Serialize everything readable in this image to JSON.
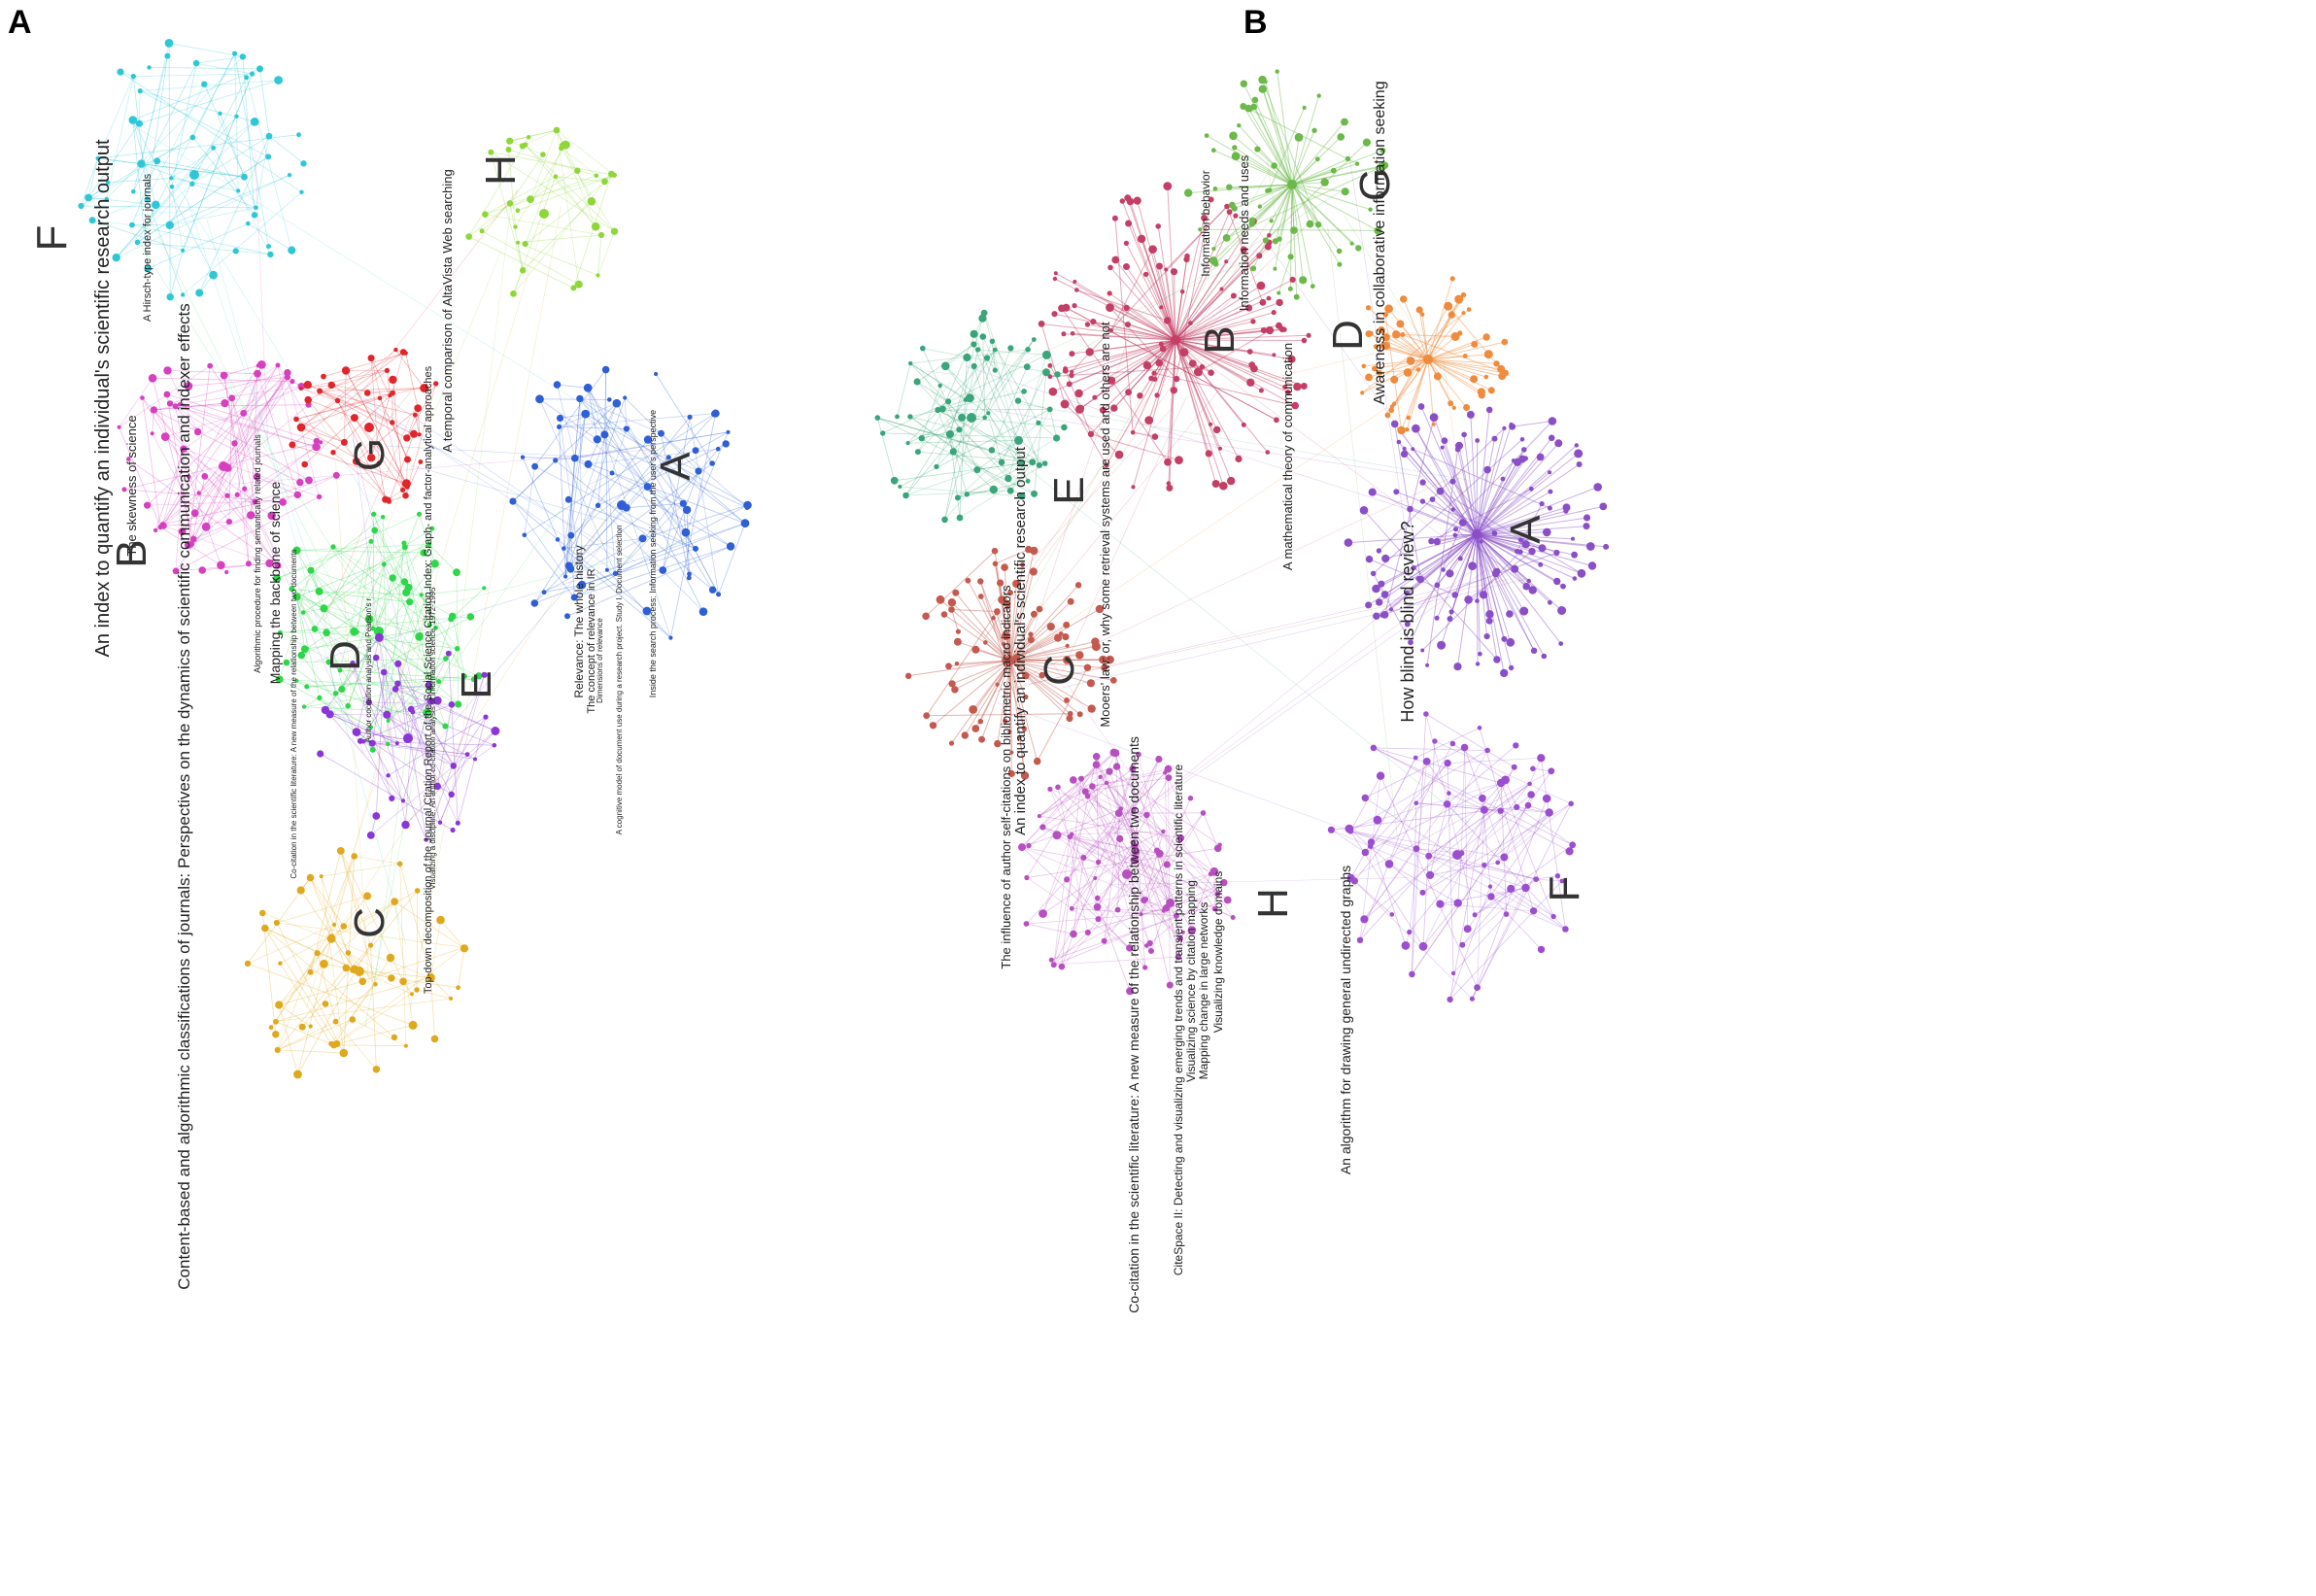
{
  "panels": [
    {
      "id": "A",
      "letter": "A",
      "clusters": [
        {
          "label": "A",
          "color": "#2f5fd6"
        },
        {
          "label": "B",
          "color": "#d63fc0"
        },
        {
          "label": "C",
          "color": "#e0a81c"
        },
        {
          "label": "D",
          "color": "#2fd64a"
        },
        {
          "label": "E",
          "color": "#8a35d6"
        },
        {
          "label": "F",
          "color": "#2fc7d6"
        },
        {
          "label": "G",
          "color": "#e0262b"
        },
        {
          "label": "H",
          "color": "#8fd63a"
        }
      ],
      "titles": [
        "An index to quantify an individual's scientific research output",
        "A temporal comparison of AltaVista Web searching",
        "Content-based and algorithmic classifications of journals: Perspectives on the dynamics of scientific communication and indexer effects",
        "A Hirsch-type index for journals",
        "The skewness of science",
        "Mapping the backbone of science",
        "Algorithmic procedure for finding semantically related journals",
        "Top-down decomposition of the Journal Citation Report of the Social Science Citation Index: Graph- and factor-analytical approaches",
        "Inside the search process: Information seeking from the user's perspective",
        "Relevance: The whole history",
        "The concept of relevance in IR",
        "Dimensions of relevance",
        "Co-citation in the scientific literature: A new measure of the relationship between two documents",
        "Author cocitation analysis and Pearson's r",
        "Visualizing a discipline: An author co-citation analysis of information science, 1972-1995",
        "A cognitive model of document use during a research project. Study I. Document selection"
      ]
    },
    {
      "id": "B",
      "letter": "B",
      "clusters": [
        {
          "label": "A",
          "color": "#8a4fc7"
        },
        {
          "label": "B",
          "color": "#c43f66"
        },
        {
          "label": "C",
          "color": "#c45a4f"
        },
        {
          "label": "D",
          "color": "#f08a3c"
        },
        {
          "label": "E",
          "color": "#3aa57a"
        },
        {
          "label": "F",
          "color": "#9b4fd0"
        },
        {
          "label": "G",
          "color": "#6cb84a"
        },
        {
          "label": "H",
          "color": "#b84fc0"
        }
      ],
      "titles": [
        "Awareness in collaborative information seeking",
        "Information needs and uses",
        "Information behavior",
        "Mooers' law: or, why some retrieval systems are used and others are not",
        "A mathematical theory of communication",
        "How blind is blind review?",
        "An index to quantify an individual's scientific research output",
        "The influence of author self-citations on bibliometric macro indicators",
        "Co-citation in the scientific literature: A new measure of the relationship between two documents",
        "CiteSpace II: Detecting and visualizing emerging trends and transient patterns in scientific literature",
        "Visualizing science by citation mapping",
        "Mapping change in large networks",
        "Visualizing knowledge domains",
        "An algorithm for drawing general undirected graphs"
      ]
    }
  ]
}
